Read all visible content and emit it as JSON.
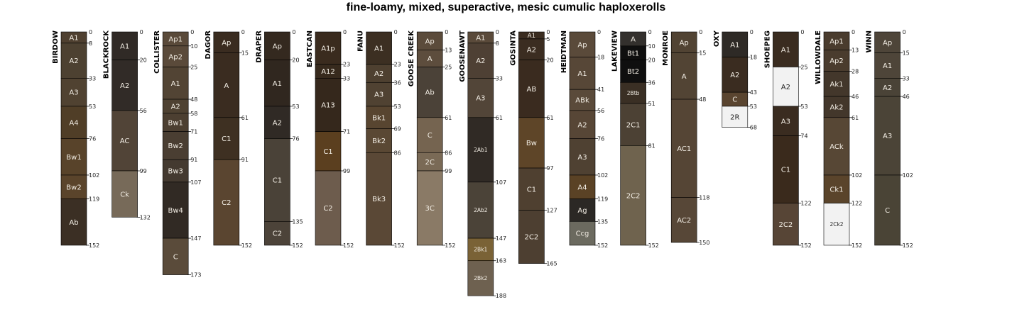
{
  "chart_data": {
    "type": "soil-profile-sketch",
    "title": "fine-loamy, mixed, superactive, mesic cumulic haploxerolls",
    "depth_units": "cm",
    "profiles": [
      {
        "name": "BIRDOW",
        "horizons": [
          {
            "name": "A1",
            "top": 0,
            "bottom": 8,
            "color": "#4f4030"
          },
          {
            "name": "A2",
            "top": 8,
            "bottom": 33,
            "color": "#4d4131"
          },
          {
            "name": "A3",
            "top": 33,
            "bottom": 53,
            "color": "#504231"
          },
          {
            "name": "A4",
            "top": 53,
            "bottom": 76,
            "color": "#503e27"
          },
          {
            "name": "Bw1",
            "top": 76,
            "bottom": 102,
            "color": "#58432a"
          },
          {
            "name": "Bw2",
            "top": 102,
            "bottom": 119,
            "color": "#5a442b"
          },
          {
            "name": "Ab",
            "top": 119,
            "bottom": 152,
            "color": "#3b2f24"
          }
        ]
      },
      {
        "name": "BLACKROCK",
        "horizons": [
          {
            "name": "A1",
            "top": 0,
            "bottom": 20,
            "color": "#302a26"
          },
          {
            "name": "A2",
            "top": 20,
            "bottom": 56,
            "color": "#312b27"
          },
          {
            "name": "AC",
            "top": 56,
            "bottom": 99,
            "color": "#514437"
          },
          {
            "name": "Ck",
            "top": 99,
            "bottom": 132,
            "color": "#776a59"
          }
        ]
      },
      {
        "name": "COLLISTER",
        "horizons": [
          {
            "name": "Ap1",
            "top": 0,
            "bottom": 10,
            "color": "#5a4a3a"
          },
          {
            "name": "Ap2",
            "top": 10,
            "bottom": 25,
            "color": "#5a4a3a"
          },
          {
            "name": "A1",
            "top": 25,
            "bottom": 48,
            "color": "#524434"
          },
          {
            "name": "A2",
            "top": 48,
            "bottom": 58,
            "color": "#4f4232"
          },
          {
            "name": "Bw1",
            "top": 58,
            "bottom": 71,
            "color": "#4c3f31"
          },
          {
            "name": "Bw2",
            "top": 71,
            "bottom": 91,
            "color": "#4a3e32"
          },
          {
            "name": "Bw3",
            "top": 91,
            "bottom": 107,
            "color": "#443a30"
          },
          {
            "name": "Bw4",
            "top": 107,
            "bottom": 147,
            "color": "#312a24"
          },
          {
            "name": "C",
            "top": 147,
            "bottom": 173,
            "color": "#5a4b3a"
          }
        ]
      },
      {
        "name": "DAGOR",
        "horizons": [
          {
            "name": "Ap",
            "top": 0,
            "bottom": 15,
            "color": "#3a2c20"
          },
          {
            "name": "A",
            "top": 15,
            "bottom": 61,
            "color": "#3a2c20"
          },
          {
            "name": "C1",
            "top": 61,
            "bottom": 91,
            "color": "#3e3022"
          },
          {
            "name": "C2",
            "top": 91,
            "bottom": 152,
            "color": "#5a4530"
          }
        ]
      },
      {
        "name": "DRAPER",
        "horizons": [
          {
            "name": "Ap",
            "top": 0,
            "bottom": 20,
            "color": "#34291f"
          },
          {
            "name": "A1",
            "top": 20,
            "bottom": 53,
            "color": "#30271f"
          },
          {
            "name": "A2",
            "top": 53,
            "bottom": 76,
            "color": "#302a25"
          },
          {
            "name": "C1",
            "top": 76,
            "bottom": 135,
            "color": "#4a4238"
          },
          {
            "name": "C2",
            "top": 135,
            "bottom": 152,
            "color": "#4c4339"
          }
        ]
      },
      {
        "name": "EASTCAN",
        "horizons": [
          {
            "name": "A1p",
            "top": 0,
            "bottom": 23,
            "color": "#3a2b1e"
          },
          {
            "name": "A12",
            "top": 23,
            "bottom": 33,
            "color": "#372a1d"
          },
          {
            "name": "A13",
            "top": 33,
            "bottom": 71,
            "color": "#35281c"
          },
          {
            "name": "C1",
            "top": 71,
            "bottom": 99,
            "color": "#5b3f1f"
          },
          {
            "name": "C2",
            "top": 99,
            "bottom": 152,
            "color": "#6d5c4d"
          }
        ]
      },
      {
        "name": "FANU",
        "horizons": [
          {
            "name": "A1",
            "top": 0,
            "bottom": 23,
            "color": "#3c2f22"
          },
          {
            "name": "A2",
            "top": 23,
            "bottom": 36,
            "color": "#4e4030"
          },
          {
            "name": "A3",
            "top": 36,
            "bottom": 53,
            "color": "#504232"
          },
          {
            "name": "Bk1",
            "top": 53,
            "bottom": 69,
            "color": "#584530"
          },
          {
            "name": "Bk2",
            "top": 69,
            "bottom": 86,
            "color": "#5a4834"
          },
          {
            "name": "Bk3",
            "top": 86,
            "bottom": 152,
            "color": "#5a4836"
          }
        ]
      },
      {
        "name": "GOOSE CREEK",
        "horizons": [
          {
            "name": "Ap",
            "top": 0,
            "bottom": 13,
            "color": "#5b4b3b"
          },
          {
            "name": "A",
            "top": 13,
            "bottom": 25,
            "color": "#5d4d3d"
          },
          {
            "name": "Ab",
            "top": 25,
            "bottom": 61,
            "color": "#4b4238"
          },
          {
            "name": "C",
            "top": 61,
            "bottom": 86,
            "color": "#756450"
          },
          {
            "name": "2C",
            "top": 86,
            "bottom": 99,
            "color": "#7a6a56"
          },
          {
            "name": "3C",
            "top": 99,
            "bottom": 152,
            "color": "#8a7a66"
          }
        ]
      },
      {
        "name": "GOOSENAWT",
        "horizons": [
          {
            "name": "A1",
            "top": 0,
            "bottom": 8,
            "color": "#5a4a3a"
          },
          {
            "name": "A2",
            "top": 8,
            "bottom": 33,
            "color": "#4e4034"
          },
          {
            "name": "A3",
            "top": 33,
            "bottom": 61,
            "color": "#524538"
          },
          {
            "name": "2Ab1",
            "top": 61,
            "bottom": 107,
            "color": "#302a25"
          },
          {
            "name": "2Ab2",
            "top": 107,
            "bottom": 147,
            "color": "#4b4338"
          },
          {
            "name": "2Bk1",
            "top": 147,
            "bottom": 163,
            "color": "#7a6236"
          },
          {
            "name": "2Bk2",
            "top": 163,
            "bottom": 188,
            "color": "#6e6150"
          }
        ]
      },
      {
        "name": "GOSINTA",
        "horizons": [
          {
            "name": "A1",
            "top": 0,
            "bottom": 5,
            "color": "#3a2c20"
          },
          {
            "name": "A2",
            "top": 5,
            "bottom": 20,
            "color": "#3b2d21"
          },
          {
            "name": "AB",
            "top": 20,
            "bottom": 61,
            "color": "#3a2b1f"
          },
          {
            "name": "Bw",
            "top": 61,
            "bottom": 97,
            "color": "#5e4528"
          },
          {
            "name": "C1",
            "top": 97,
            "bottom": 127,
            "color": "#4f4030"
          },
          {
            "name": "2C2",
            "top": 127,
            "bottom": 165,
            "color": "#4d3f31"
          }
        ]
      },
      {
        "name": "HEIDTMAN",
        "horizons": [
          {
            "name": "Ap",
            "top": 0,
            "bottom": 18,
            "color": "#5a4a3a"
          },
          {
            "name": "A1",
            "top": 18,
            "bottom": 41,
            "color": "#574737"
          },
          {
            "name": "ABk",
            "top": 41,
            "bottom": 56,
            "color": "#5a4a3a"
          },
          {
            "name": "A2",
            "top": 56,
            "bottom": 76,
            "color": "#574636"
          },
          {
            "name": "A3",
            "top": 76,
            "bottom": 102,
            "color": "#4f4132"
          },
          {
            "name": "A4",
            "top": 102,
            "bottom": 119,
            "color": "#5a4225"
          },
          {
            "name": "Ag",
            "top": 119,
            "bottom": 135,
            "color": "#2b2825"
          },
          {
            "name": "Ccg",
            "top": 135,
            "bottom": 152,
            "color": "#6b6a5f"
          }
        ]
      },
      {
        "name": "LAKEVIEW",
        "horizons": [
          {
            "name": "A",
            "top": 0,
            "bottom": 10,
            "color": "#33302d"
          },
          {
            "name": "Bt1",
            "top": 10,
            "bottom": 20,
            "color": "#0f0f0f"
          },
          {
            "name": "Bt2",
            "top": 20,
            "bottom": 36,
            "color": "#0f0f0f"
          },
          {
            "name": "2Btb",
            "top": 36,
            "bottom": 51,
            "color": "#3a2f24"
          },
          {
            "name": "2C1",
            "top": 51,
            "bottom": 81,
            "color": "#4c4134"
          },
          {
            "name": "2C2",
            "top": 81,
            "bottom": 152,
            "color": "#6f634e"
          }
        ]
      },
      {
        "name": "MONROE",
        "horizons": [
          {
            "name": "Ap",
            "top": 0,
            "bottom": 15,
            "color": "#514333"
          },
          {
            "name": "A",
            "top": 15,
            "bottom": 48,
            "color": "#524434"
          },
          {
            "name": "AC1",
            "top": 48,
            "bottom": 118,
            "color": "#554535"
          },
          {
            "name": "AC2",
            "top": 118,
            "bottom": 150,
            "color": "#574737"
          }
        ]
      },
      {
        "name": "OXY",
        "horizons": [
          {
            "name": "A1",
            "top": 0,
            "bottom": 18,
            "color": "#2e2a26"
          },
          {
            "name": "A2",
            "top": 18,
            "bottom": 43,
            "color": "#3a2c20"
          },
          {
            "name": "C",
            "top": 43,
            "bottom": 53,
            "color": "#5a4530"
          },
          {
            "name": "2R",
            "top": 53,
            "bottom": 68,
            "color": "#f2f2f2"
          }
        ]
      },
      {
        "name": "SHOEPEG",
        "horizons": [
          {
            "name": "A1",
            "top": 0,
            "bottom": 25,
            "color": "#3a2c20"
          },
          {
            "name": "A2",
            "top": 25,
            "bottom": 53,
            "color": "#f2f2f2"
          },
          {
            "name": "A3",
            "top": 53,
            "bottom": 74,
            "color": "#3a2c20"
          },
          {
            "name": "C1",
            "top": 74,
            "bottom": 122,
            "color": "#3a2a1c"
          },
          {
            "name": "2C2",
            "top": 122,
            "bottom": 152,
            "color": "#574536"
          }
        ]
      },
      {
        "name": "WILLOWDALE",
        "horizons": [
          {
            "name": "Ap1",
            "top": 0,
            "bottom": 13,
            "color": "#4a3c2e"
          },
          {
            "name": "Ap2",
            "top": 13,
            "bottom": 28,
            "color": "#4a3c2e"
          },
          {
            "name": "Ak1",
            "top": 28,
            "bottom": 46,
            "color": "#43372b"
          },
          {
            "name": "Ak2",
            "top": 46,
            "bottom": 61,
            "color": "#43372b"
          },
          {
            "name": "ACk",
            "top": 61,
            "bottom": 102,
            "color": "#574735"
          },
          {
            "name": "Ck1",
            "top": 102,
            "bottom": 122,
            "color": "#5a442b"
          },
          {
            "name": "2Ck2",
            "top": 122,
            "bottom": 152,
            "color": "#f2f2f2"
          }
        ]
      },
      {
        "name": "WINN",
        "horizons": [
          {
            "name": "Ap",
            "top": 0,
            "bottom": 15,
            "color": "#4e4539"
          },
          {
            "name": "A1",
            "top": 15,
            "bottom": 33,
            "color": "#4e4539"
          },
          {
            "name": "A2",
            "top": 33,
            "bottom": 46,
            "color": "#4a4337"
          },
          {
            "name": "A3",
            "top": 46,
            "bottom": 102,
            "color": "#4b4437"
          },
          {
            "name": "C",
            "top": 102,
            "bottom": 152,
            "color": "#4a4436"
          }
        ]
      }
    ]
  }
}
